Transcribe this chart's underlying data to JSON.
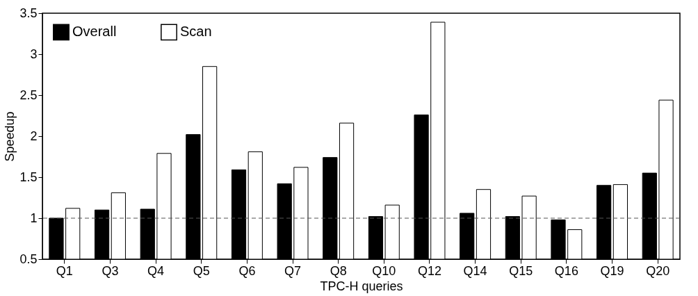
{
  "chart_data": {
    "type": "bar",
    "xlabel": "TPC-H queries",
    "ylabel": "Speedup",
    "categories": [
      "Q1",
      "Q3",
      "Q4",
      "Q5",
      "Q6",
      "Q7",
      "Q8",
      "Q10",
      "Q12",
      "Q14",
      "Q15",
      "Q16",
      "Q19",
      "Q20"
    ],
    "series": [
      {
        "name": "Overall",
        "color": "#000000",
        "values": [
          1.0,
          1.1,
          1.11,
          2.02,
          1.59,
          1.42,
          1.74,
          1.02,
          2.26,
          1.06,
          1.02,
          0.98,
          1.4,
          1.55
        ]
      },
      {
        "name": "Scan",
        "color": "#ffffff",
        "values": [
          1.12,
          1.31,
          1.79,
          2.85,
          1.81,
          1.62,
          2.16,
          1.16,
          3.39,
          1.35,
          1.27,
          0.86,
          1.41,
          2.44
        ]
      }
    ],
    "ylim": [
      0.5,
      3.5
    ],
    "yticks": [
      0.5,
      1,
      1.5,
      2,
      2.5,
      3,
      3.5
    ],
    "grid": false,
    "legend": "top left",
    "ref_lines": [
      {
        "axis": "y",
        "value": 1,
        "color": "#555555",
        "line_style": "dashed"
      }
    ]
  }
}
